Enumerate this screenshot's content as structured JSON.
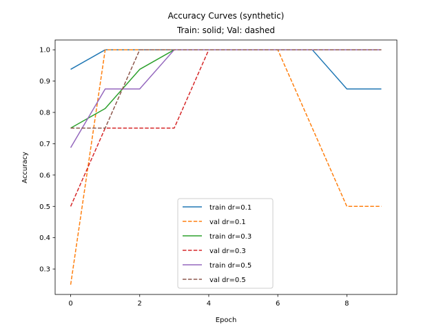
{
  "chart_data": {
    "type": "line",
    "title": "Accuracy Curves (synthetic)",
    "subtitle": "Train: solid; Val: dashed",
    "xlabel": "Epoch",
    "ylabel": "Accuracy",
    "xlim": [
      -0.45,
      9.45
    ],
    "ylim": [
      0.21875,
      1.03125
    ],
    "xticks": [
      0,
      2,
      4,
      6,
      8
    ],
    "yticks": [
      0.3,
      0.4,
      0.5,
      0.6,
      0.7,
      0.8,
      0.9,
      1.0
    ],
    "grid": false,
    "legend_position": "lower center",
    "x": [
      0,
      1,
      2,
      3,
      4,
      5,
      6,
      7,
      8,
      9
    ],
    "series": [
      {
        "name": "train dr=0.1",
        "color": "#1f77b4",
        "style": "solid",
        "values": [
          0.9375,
          1.0,
          1.0,
          1.0,
          1.0,
          1.0,
          1.0,
          1.0,
          0.875,
          0.875
        ]
      },
      {
        "name": "val dr=0.1",
        "color": "#ff7f0e",
        "style": "dashed",
        "values": [
          0.25,
          1.0,
          1.0,
          1.0,
          1.0,
          1.0,
          1.0,
          0.75,
          0.5,
          0.5
        ]
      },
      {
        "name": "train dr=0.3",
        "color": "#2ca02c",
        "style": "solid",
        "values": [
          0.75,
          0.8125,
          0.9375,
          1.0,
          1.0,
          1.0,
          1.0,
          1.0,
          1.0,
          1.0
        ]
      },
      {
        "name": "val dr=0.3",
        "color": "#d62728",
        "style": "dashed",
        "values": [
          0.5,
          0.75,
          0.75,
          0.75,
          1.0,
          1.0,
          1.0,
          1.0,
          1.0,
          1.0
        ]
      },
      {
        "name": "train dr=0.5",
        "color": "#9467bd",
        "style": "solid",
        "values": [
          0.6875,
          0.875,
          0.875,
          1.0,
          1.0,
          1.0,
          1.0,
          1.0,
          1.0,
          1.0
        ]
      },
      {
        "name": "val dr=0.5",
        "color": "#8c564b",
        "style": "dashed",
        "values": [
          0.75,
          0.75,
          1.0,
          1.0,
          1.0,
          1.0,
          1.0,
          1.0,
          1.0,
          1.0
        ]
      }
    ]
  }
}
